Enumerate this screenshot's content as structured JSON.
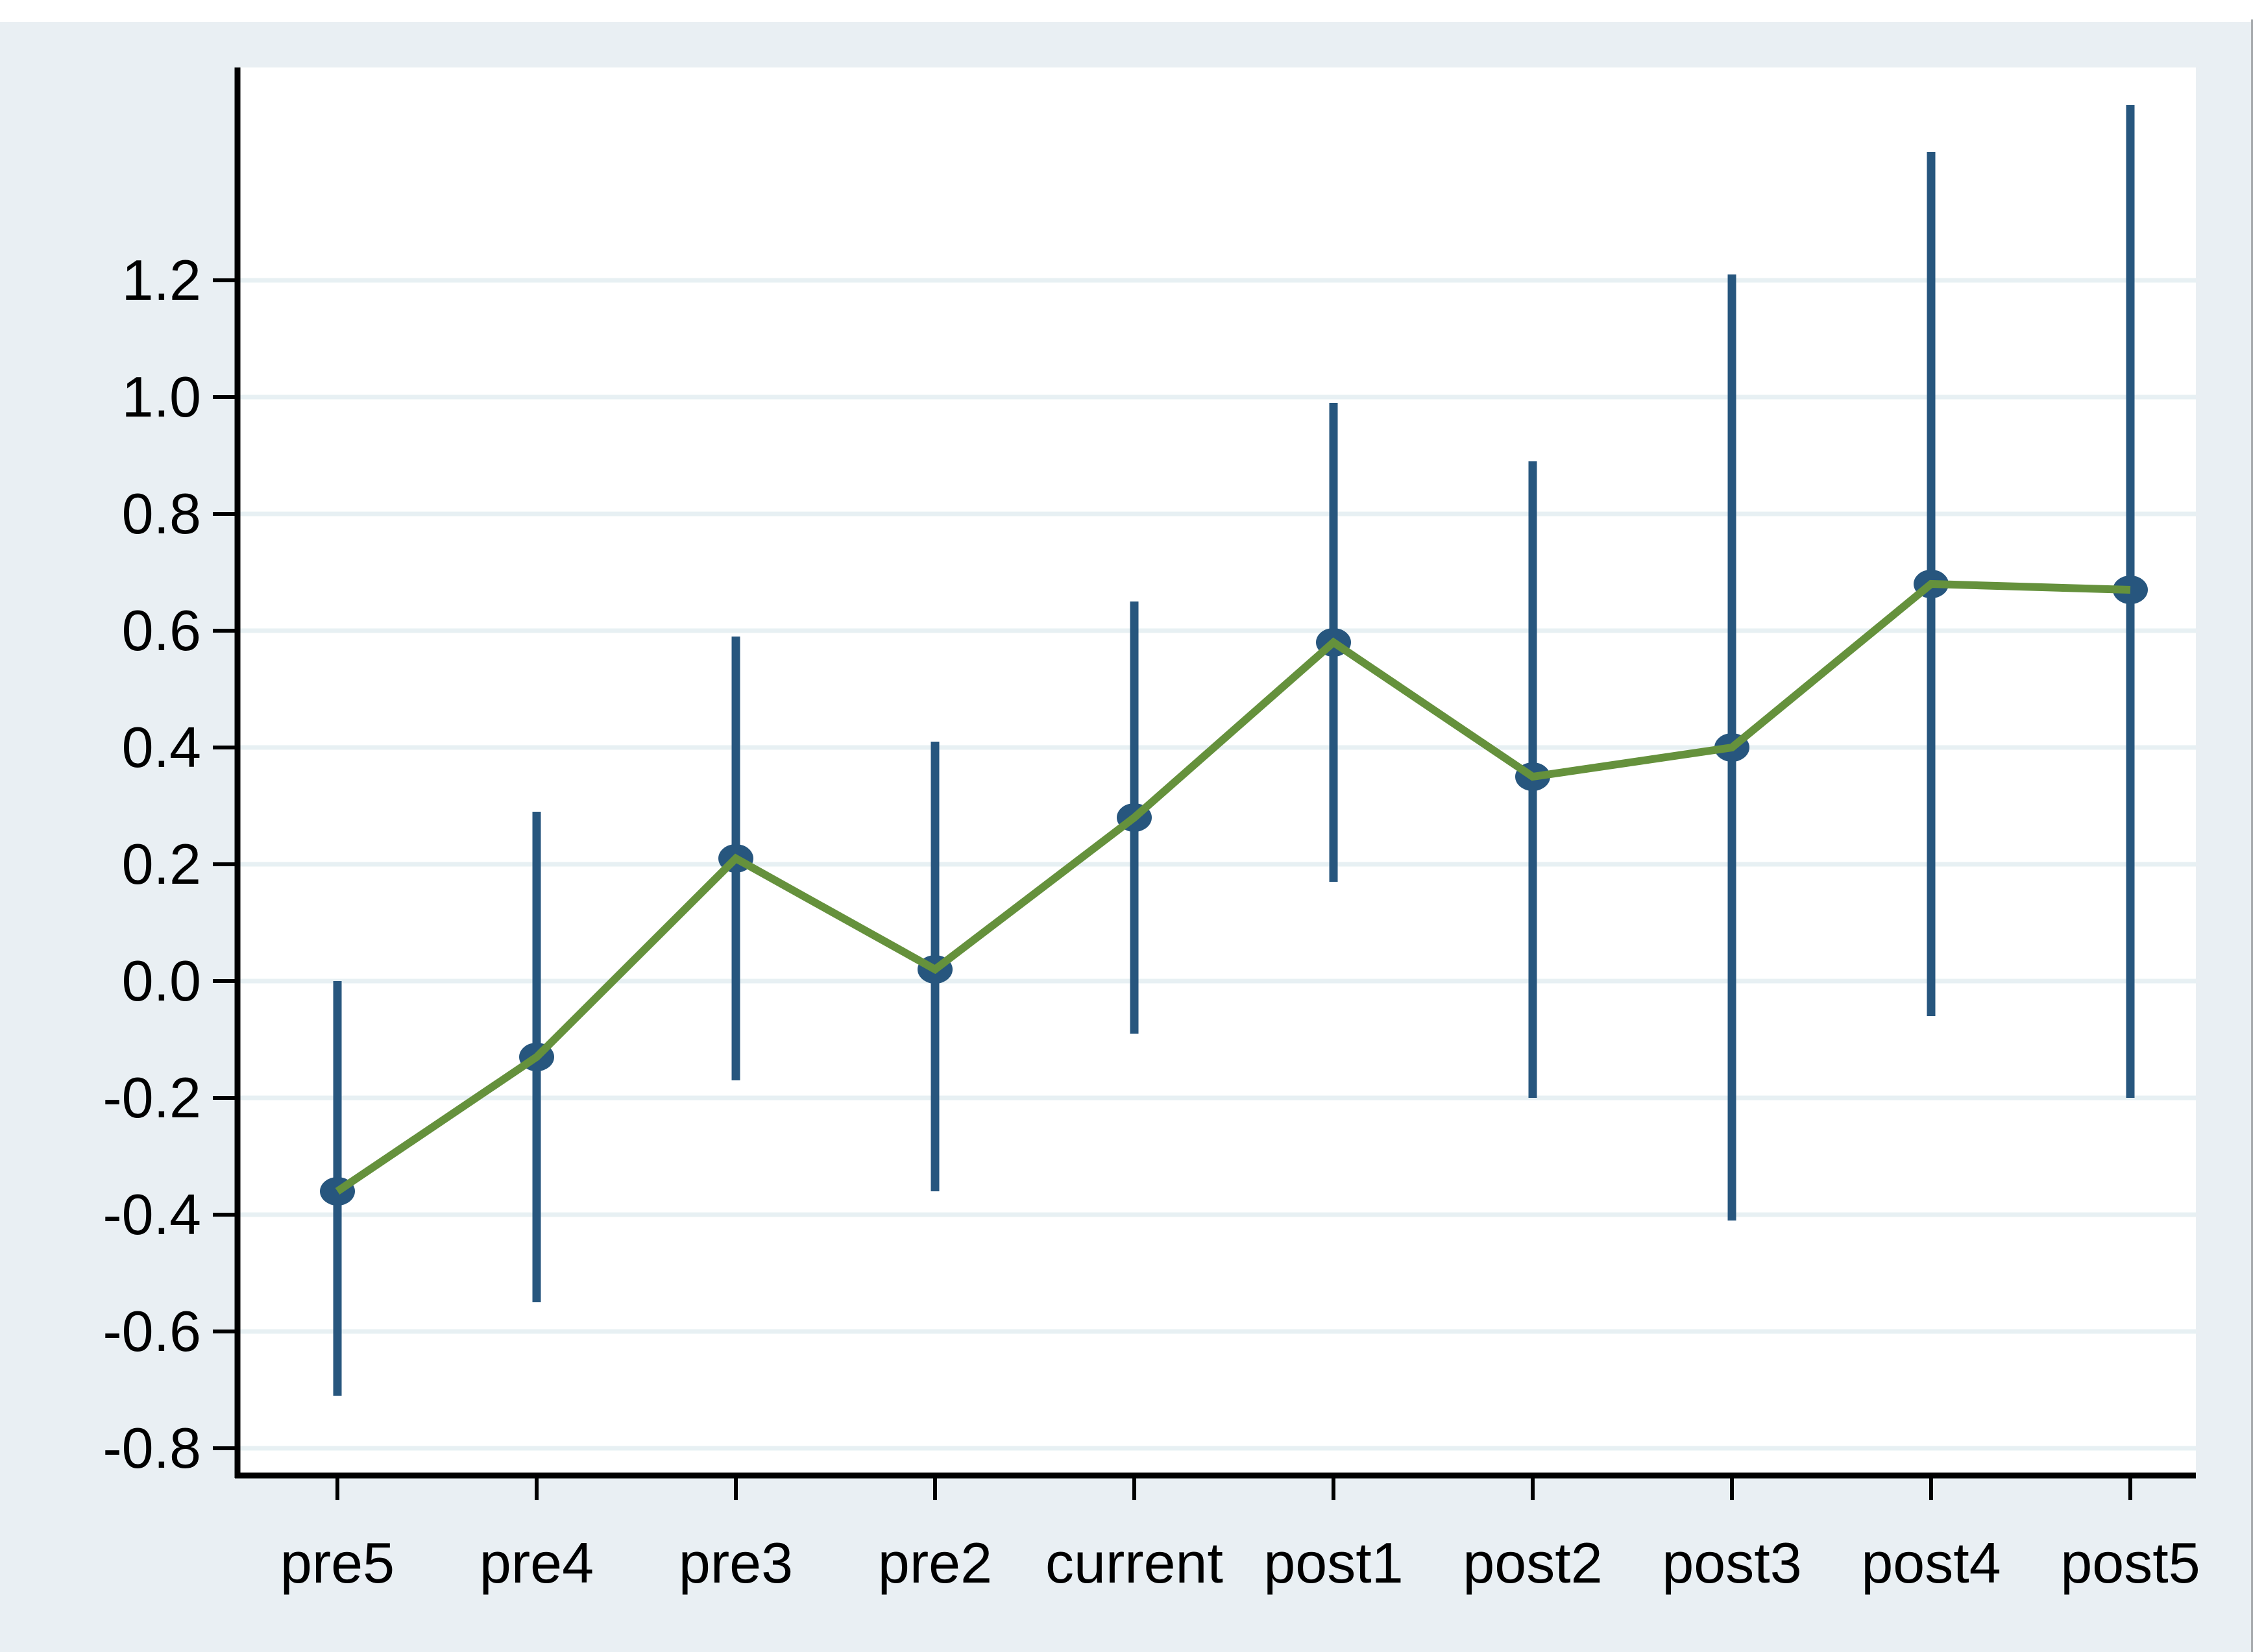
{
  "chart_data": {
    "type": "line",
    "title": "",
    "xlabel": "",
    "ylabel": "",
    "categories": [
      "pre5",
      "pre4",
      "pre3",
      "pre2",
      "current",
      "post1",
      "post2",
      "post3",
      "post4",
      "post5"
    ],
    "series": [
      {
        "name": "point-estimate",
        "values": [
          -0.36,
          -0.13,
          0.21,
          0.02,
          0.28,
          0.58,
          0.35,
          0.4,
          0.68,
          0.67
        ]
      },
      {
        "name": "ci-lower",
        "values": [
          -0.71,
          -0.55,
          -0.17,
          -0.36,
          -0.09,
          0.17,
          -0.2,
          -0.41,
          -0.06,
          -0.2
        ]
      },
      {
        "name": "ci-upper",
        "values": [
          0.0,
          0.29,
          0.59,
          0.41,
          0.65,
          0.99,
          0.89,
          1.21,
          1.42,
          1.5
        ]
      }
    ],
    "y_ticks": [
      1.2,
      1.0,
      0.8,
      0.6,
      0.4,
      0.2,
      0.0,
      -0.2,
      -0.4,
      -0.6,
      -0.8
    ],
    "y_tick_labels": [
      "1.2",
      "1.0",
      "0.8",
      "0.6",
      "0.4",
      "0.2",
      "0.0",
      "-0.2",
      "-0.4",
      "-0.6",
      "-0.8"
    ],
    "ylim": [
      -0.85,
      1.56
    ],
    "grid": true,
    "legend_position": "none",
    "colors": {
      "background": "#e9eff3",
      "plot_background": "#ffffff",
      "gridline": "#e7f0f3",
      "axis": "#000000",
      "ci_and_marker": "#27567e",
      "trend_line": "#65913c",
      "tick_text": "#000000"
    }
  }
}
